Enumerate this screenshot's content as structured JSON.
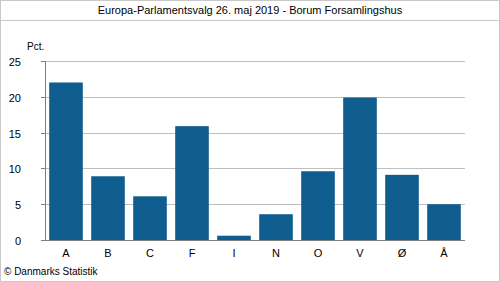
{
  "chart_data": {
    "type": "bar",
    "title": "Europa-Parlamentsvalg 26. maj 2019 - Borum Forsamlingshus",
    "y_label": "Pct.",
    "source": "© Danmarks Statistik",
    "categories": [
      "A",
      "B",
      "C",
      "F",
      "I",
      "N",
      "O",
      "V",
      "Ø",
      "Å"
    ],
    "values": [
      22.0,
      8.9,
      6.1,
      15.9,
      0.6,
      3.6,
      9.6,
      19.9,
      9.1,
      5.0
    ],
    "color": "#0f5c8f",
    "ylim": [
      0,
      25
    ],
    "yticks": [
      0,
      5,
      10,
      15,
      20,
      25
    ],
    "grid": true
  }
}
